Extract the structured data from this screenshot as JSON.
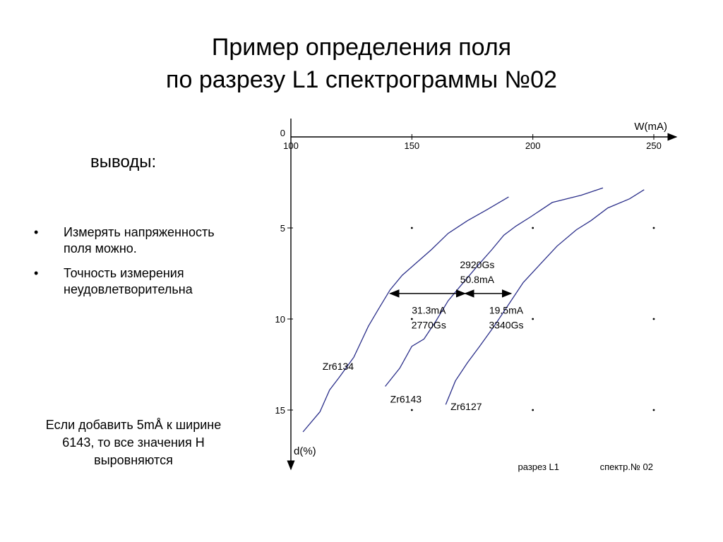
{
  "slide": {
    "title_line1": "Пример определения поля",
    "title_line2": "по разрезу L1 спектрограммы №02",
    "conclusions_label": "выводы:",
    "bullet_char": "•",
    "bullets": [
      "Измерять напряженность поля можно.",
      "Точность измерения неудовлетворительна"
    ],
    "note": "Если добавить 5mÅ к ширине 6143, то все значения Н выровняются"
  },
  "chart_data": {
    "type": "line",
    "xlabel": "W(mA)",
    "ylabel": "d(%)",
    "x_ticks": [
      "100",
      "150",
      "200",
      "250"
    ],
    "y_ticks": [
      "0",
      "5",
      "10",
      "15"
    ],
    "xlim": [
      100,
      255
    ],
    "ylim": [
      0,
      18
    ],
    "y_inverted": true,
    "x_axis_position": "top",
    "grid": "dots",
    "line_color": "#2b2f8a",
    "series": [
      {
        "name": "Zr6134",
        "points": [
          [
            105,
            16.2
          ],
          [
            112,
            15.1
          ],
          [
            116,
            13.9
          ],
          [
            120,
            13.2
          ],
          [
            126,
            12.1
          ],
          [
            132,
            10.4
          ],
          [
            136,
            9.5
          ],
          [
            141,
            8.4
          ],
          [
            146,
            7.6
          ],
          [
            152,
            6.9
          ],
          [
            158,
            6.2
          ],
          [
            165,
            5.3
          ],
          [
            173,
            4.6
          ],
          [
            181,
            4.0
          ],
          [
            190,
            3.3
          ]
        ]
      },
      {
        "name": "Zr6143",
        "points": [
          [
            139,
            13.7
          ],
          [
            145,
            12.7
          ],
          [
            150,
            11.5
          ],
          [
            155,
            11.1
          ],
          [
            160,
            10.1
          ],
          [
            165,
            9.0
          ],
          [
            170,
            8.2
          ],
          [
            177,
            7.1
          ],
          [
            183,
            6.2
          ],
          [
            188,
            5.4
          ],
          [
            193,
            4.9
          ],
          [
            199,
            4.4
          ],
          [
            208,
            3.6
          ],
          [
            220,
            3.2
          ],
          [
            229,
            2.8
          ]
        ]
      },
      {
        "name": "Zr6127",
        "points": [
          [
            164,
            14.7
          ],
          [
            168,
            13.4
          ],
          [
            173,
            12.4
          ],
          [
            178,
            11.5
          ],
          [
            184,
            10.4
          ],
          [
            190,
            9.2
          ],
          [
            196,
            8.0
          ],
          [
            203,
            7.0
          ],
          [
            210,
            6.0
          ],
          [
            218,
            5.1
          ],
          [
            224,
            4.6
          ],
          [
            231,
            3.9
          ],
          [
            240,
            3.4
          ],
          [
            246,
            2.9
          ]
        ]
      }
    ],
    "annotations": [
      {
        "lines": [
          "2920Gs",
          "50.8mA"
        ],
        "x": 177,
        "y": 7.2
      },
      {
        "lines": [
          "31.3mA",
          "2770Gs"
        ],
        "x": 157,
        "y": 9.7
      },
      {
        "lines": [
          "19.5mA",
          "3340Gs"
        ],
        "x": 189,
        "y": 9.7
      }
    ],
    "arrows": [
      {
        "y": 8.6,
        "x_from": 141,
        "x_to": 172
      },
      {
        "y": 8.6,
        "x_from": 172,
        "x_to": 191
      }
    ],
    "footer_left": "разрез L1",
    "footer_right": "спектр.№ 02"
  }
}
